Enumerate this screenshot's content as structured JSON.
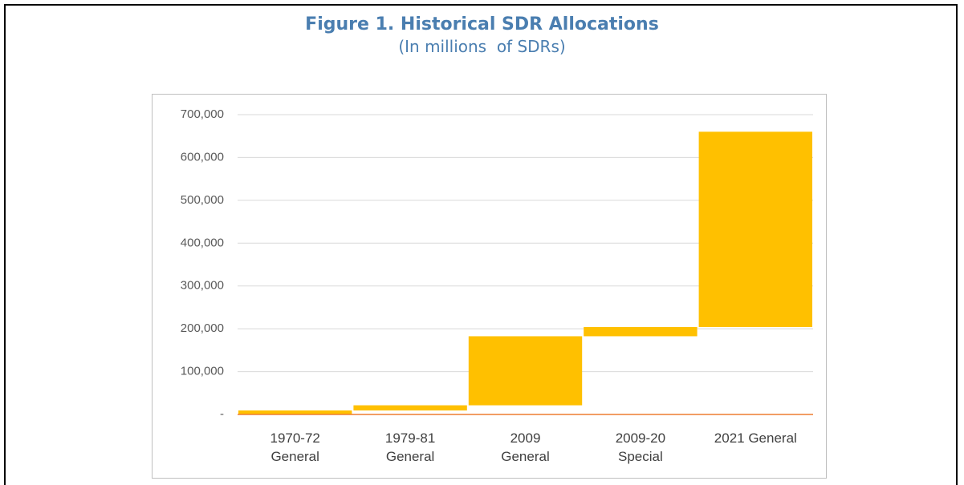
{
  "chart_data": {
    "type": "waterfall",
    "title": "Figure 1. Historical SDR Allocations",
    "subtitle": "(In millions  of SDRs)",
    "categories": [
      "1970-72\nGeneral",
      "1979-81\nGeneral",
      "2009\nGeneral",
      "2009-20\nSpecial",
      "2021 General"
    ],
    "values": [
      9315,
      12063,
      161200,
      21500,
      456000
    ],
    "color": "#ffc000",
    "ylim": [
      0,
      700000
    ],
    "yticks": [
      {
        "value": 0,
        "label": "-"
      },
      {
        "value": 100000,
        "label": "100,000"
      },
      {
        "value": 200000,
        "label": "200,000"
      },
      {
        "value": 300000,
        "label": "300,000"
      },
      {
        "value": 400000,
        "label": "400,000"
      },
      {
        "value": 500000,
        "label": "500,000"
      },
      {
        "value": 600000,
        "label": "600,000"
      },
      {
        "value": 700000,
        "label": "700,000"
      }
    ],
    "grid": true
  }
}
